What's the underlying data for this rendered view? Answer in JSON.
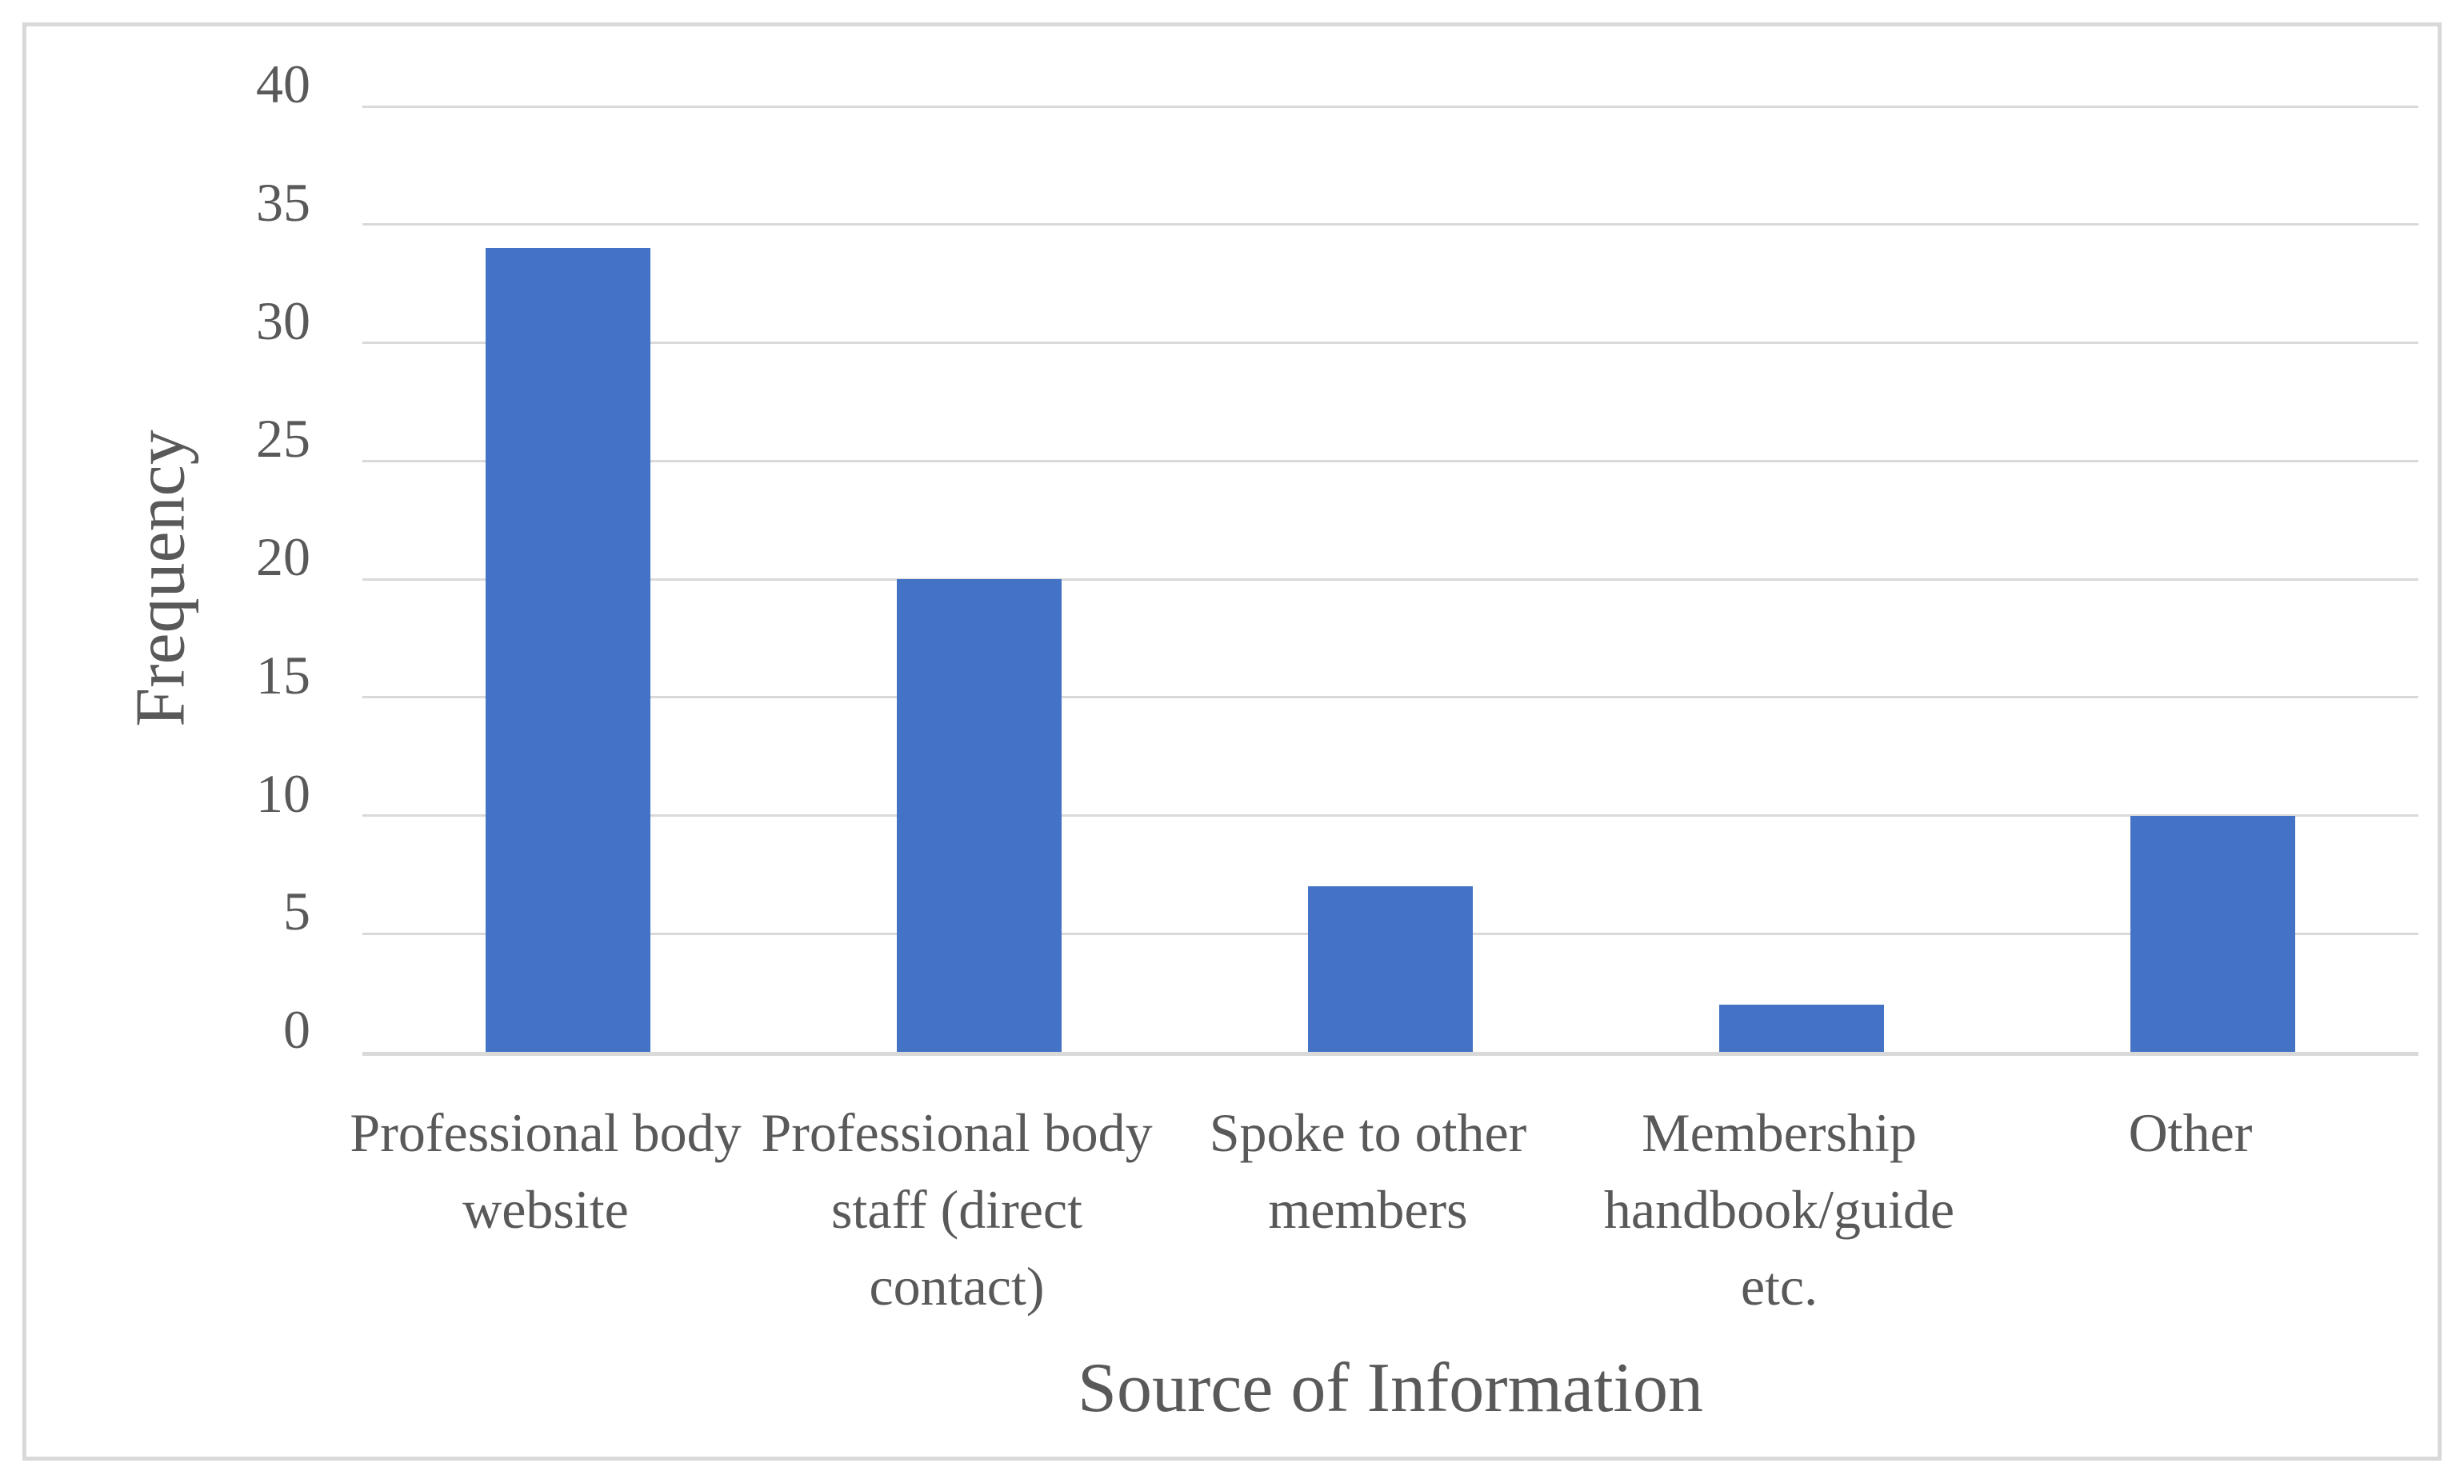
{
  "chart_data": {
    "type": "bar",
    "title": "",
    "xlabel": "Source of Information",
    "ylabel": "Frequency",
    "categories": [
      "Professional body website",
      "Professional body staff (direct contact)",
      "Spoke to other members",
      "Membership handbook/guide etc.",
      "Other"
    ],
    "values": [
      34,
      20,
      7,
      2,
      10
    ],
    "ylim": [
      0,
      40
    ],
    "yticks": [
      0,
      5,
      10,
      15,
      20,
      25,
      30,
      35,
      40
    ],
    "grid": "horizontal",
    "legend": "none",
    "colors": {
      "bar": "#4472C4",
      "gridline": "#D9D9D9",
      "axis_line": "#D9D9D9",
      "label_text": "#595959",
      "frame_border": "#D9D9D9",
      "background": "#FFFFFF"
    }
  }
}
